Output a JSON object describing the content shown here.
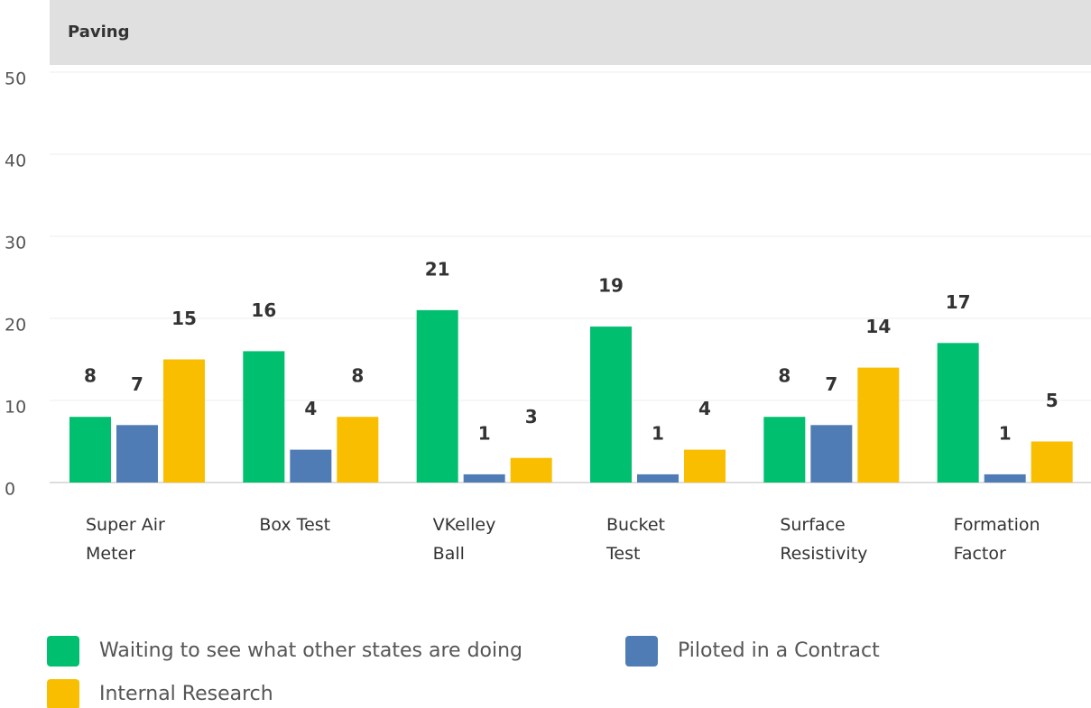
{
  "chart_data": {
    "type": "bar",
    "title": "Paving",
    "categories": [
      "Super Air\nMeter",
      "Box Test",
      "VKelley\nBall",
      "Bucket\nTest",
      "Surface\nResistivity",
      "Formation\nFactor"
    ],
    "series": [
      {
        "name": "Waiting to see what other states are doing",
        "color": "#00bf6f",
        "values": [
          8,
          16,
          21,
          19,
          8,
          17
        ]
      },
      {
        "name": "Piloted in a Contract",
        "color": "#507cb6",
        "values": [
          7,
          4,
          1,
          1,
          7,
          1
        ]
      },
      {
        "name": "Internal Research",
        "color": "#f9be00",
        "values": [
          15,
          8,
          3,
          4,
          14,
          5
        ]
      }
    ],
    "ylim": [
      0,
      50
    ],
    "yticks": [
      0,
      10,
      20,
      30,
      40,
      50
    ],
    "grid": true
  }
}
